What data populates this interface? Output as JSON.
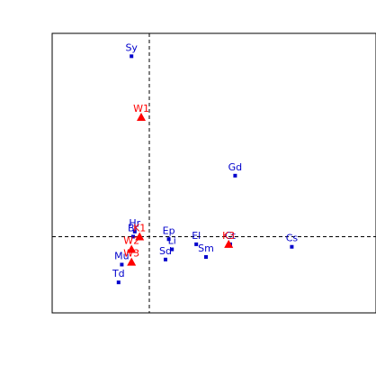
{
  "chart_data": {
    "type": "scatter",
    "title": "",
    "xlabel": "",
    "ylabel": "",
    "xlim": [
      -3.0,
      7.0
    ],
    "ylim": [
      -1.5,
      4.0
    ],
    "reference_lines": {
      "x": 0,
      "y": 0
    },
    "series": [
      {
        "color": "#0000cc",
        "marker": "square",
        "points": [
          {
            "label": "Sy",
            "x": -0.55,
            "y": 3.55
          },
          {
            "label": "Gd",
            "x": 2.65,
            "y": 1.2
          },
          {
            "label": "Hr",
            "x": -0.45,
            "y": 0.1
          },
          {
            "label": "Br",
            "x": -0.5,
            "y": 0.0
          },
          {
            "label": "Ep",
            "x": 0.6,
            "y": -0.05
          },
          {
            "label": "Li",
            "x": 0.7,
            "y": -0.25
          },
          {
            "label": "Sd",
            "x": 0.5,
            "y": -0.45
          },
          {
            "label": "El",
            "x": 1.45,
            "y": -0.15
          },
          {
            "label": "Sm",
            "x": 1.75,
            "y": -0.4
          },
          {
            "label": "Ct",
            "x": 2.5,
            "y": -0.15
          },
          {
            "label": "Cs",
            "x": 4.4,
            "y": -0.2
          },
          {
            "label": "Mu",
            "x": -0.85,
            "y": -0.55
          },
          {
            "label": "Td",
            "x": -0.95,
            "y": -0.9
          }
        ]
      },
      {
        "color": "#ff0000",
        "marker": "triangle",
        "points": [
          {
            "label": "W1",
            "x": -0.25,
            "y": 2.35
          },
          {
            "label": "K1",
            "x": -0.3,
            "y": 0.0
          },
          {
            "label": "K3",
            "x": 2.45,
            "y": -0.15
          },
          {
            "label": "W2",
            "x": -0.55,
            "y": -0.25
          },
          {
            "label": "W3",
            "x": -0.55,
            "y": -0.5
          }
        ]
      }
    ]
  }
}
